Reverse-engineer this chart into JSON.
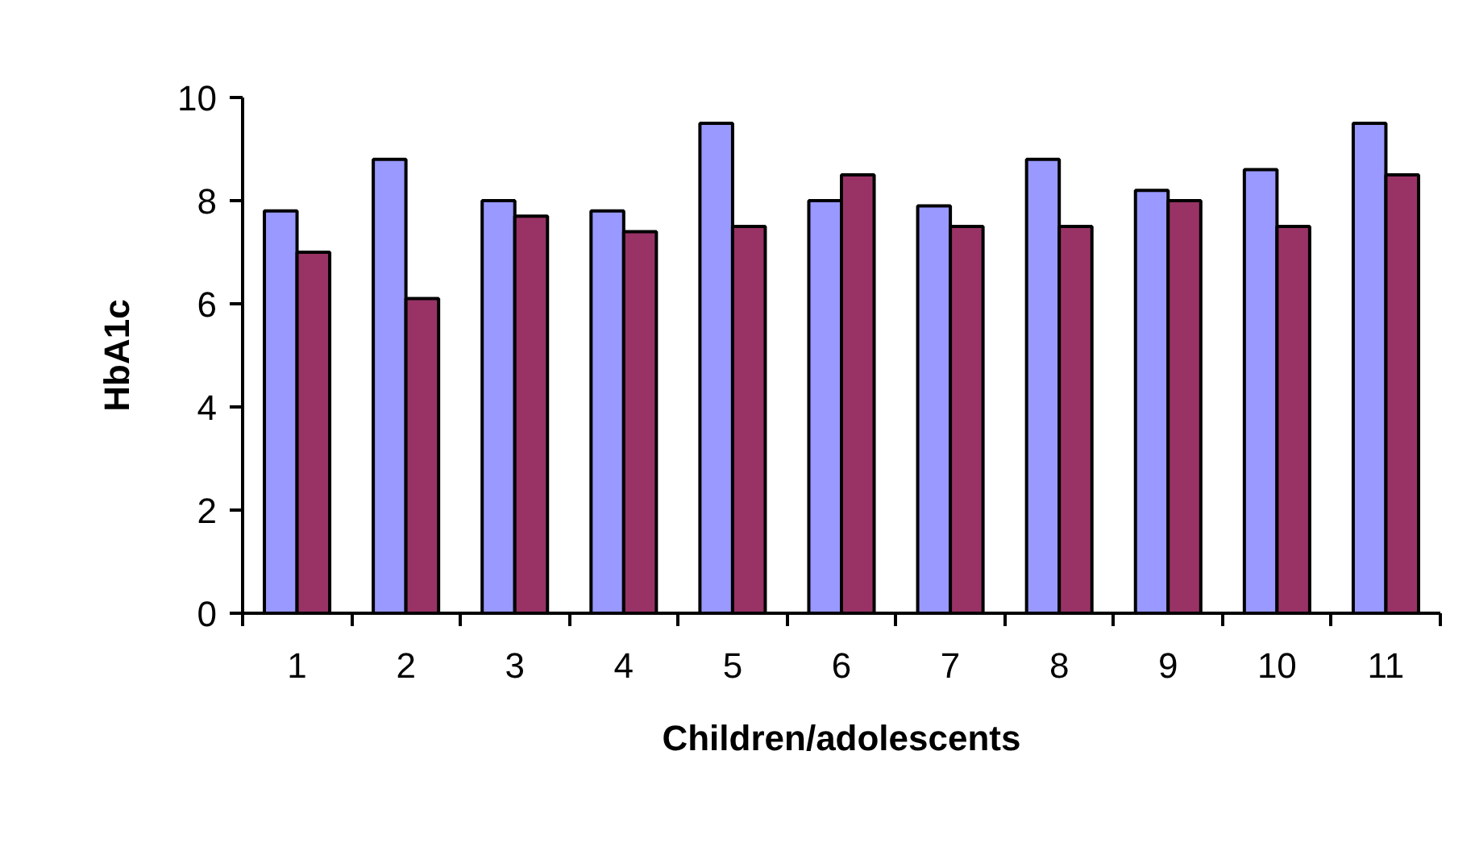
{
  "chart_data": {
    "type": "bar",
    "xlabel": "Children/adolescents",
    "ylabel": "HbA1c",
    "categories": [
      "1",
      "2",
      "3",
      "4",
      "5",
      "6",
      "7",
      "8",
      "9",
      "10",
      "11"
    ],
    "series": [
      {
        "color": "#9999ff",
        "values": [
          7.8,
          8.8,
          8.0,
          7.8,
          9.5,
          8.0,
          7.9,
          8.8,
          8.2,
          8.6,
          9.5
        ]
      },
      {
        "color": "#993366",
        "values": [
          7.0,
          6.1,
          7.7,
          7.4,
          7.5,
          8.5,
          7.5,
          7.5,
          8.0,
          7.5,
          8.5
        ]
      }
    ],
    "ylim": [
      0,
      10
    ],
    "yticks": [
      0,
      2,
      4,
      6,
      8,
      10
    ],
    "grid": false
  }
}
